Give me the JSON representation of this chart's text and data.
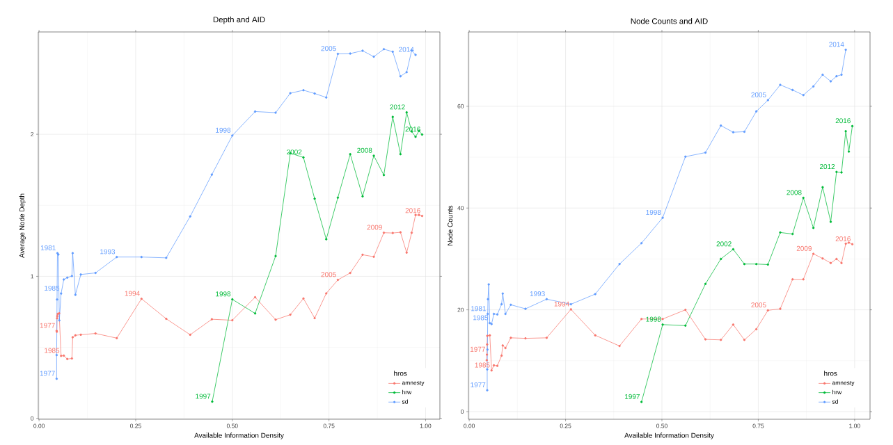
{
  "chart_data": [
    {
      "type": "line",
      "title": "Depth and AID",
      "xlabel": "Available Information Density",
      "ylabel": "Average Node Depth",
      "legend_title": "hros",
      "legend": "bottom right",
      "grid": true,
      "marker": "circle",
      "line_style": "solid",
      "xlim": [
        -0.002,
        1.037
      ],
      "ylim": [
        -0.006,
        2.72
      ],
      "xticks": [
        {
          "value": 0,
          "label": "0.00"
        },
        {
          "value": 0.25,
          "label": "0.25"
        },
        {
          "value": 0.5,
          "label": "0.50"
        },
        {
          "value": 0.75,
          "label": "0.75"
        },
        {
          "value": 1,
          "label": "1.00"
        }
      ],
      "yticks": [
        0,
        1,
        2
      ],
      "series": [
        {
          "name": "amnesty",
          "color": "#f8766d",
          "x": [
            0.0455,
            0.046,
            0.0465,
            0.047,
            0.048,
            0.052,
            0.057,
            0.064,
            0.073,
            0.085,
            0.087,
            0.094,
            0.108,
            0.146,
            0.201,
            0.265,
            0.329,
            0.391,
            0.447,
            0.5,
            0.559,
            0.612,
            0.65,
            0.684,
            0.713,
            0.743,
            0.773,
            0.805,
            0.837,
            0.866,
            0.892,
            0.915,
            0.935,
            0.951,
            0.964,
            0.974,
            0.983,
            0.991
          ],
          "values": [
            0.616,
            0.61,
            0.705,
            0.72,
            0.735,
            0.74,
            0.44,
            0.442,
            0.418,
            0.422,
            0.571,
            0.585,
            0.589,
            0.598,
            0.565,
            0.842,
            0.701,
            0.589,
            0.698,
            0.691,
            0.853,
            0.695,
            0.73,
            0.844,
            0.706,
            0.88,
            0.975,
            1.024,
            1.152,
            1.138,
            1.307,
            1.305,
            1.31,
            1.167,
            1.307,
            1.432,
            1.432,
            1.425
          ]
        },
        {
          "name": "hrw",
          "color": "#00ba38",
          "x": [
            0.448,
            0.5,
            0.559,
            0.612,
            0.65,
            0.684,
            0.713,
            0.743,
            0.773,
            0.805,
            0.837,
            0.866,
            0.892,
            0.915,
            0.935,
            0.951,
            0.964,
            0.974,
            0.983,
            0.991
          ],
          "values": [
            0.118,
            0.838,
            0.739,
            1.143,
            1.867,
            1.837,
            1.546,
            1.261,
            1.554,
            1.86,
            1.563,
            1.849,
            1.713,
            2.122,
            1.86,
            2.154,
            2.02,
            1.982,
            2.024,
            1.998
          ]
        },
        {
          "name": "sd",
          "color": "#619cff",
          "x": [
            0.0455,
            0.0455,
            0.0465,
            0.0475,
            0.05,
            0.0525,
            0.057,
            0.064,
            0.073,
            0.085,
            0.087,
            0.094,
            0.108,
            0.146,
            0.201,
            0.265,
            0.329,
            0.391,
            0.447,
            0.5,
            0.559,
            0.612,
            0.65,
            0.684,
            0.713,
            0.743,
            0.773,
            0.805,
            0.837,
            0.866,
            0.892,
            0.915,
            0.935,
            0.951,
            0.964,
            0.974
          ],
          "values": [
            0.279,
            0.446,
            0.837,
            1.163,
            1.154,
            0.69,
            0.879,
            0.978,
            0.991,
            1.002,
            1.163,
            0.87,
            1.013,
            1.024,
            1.136,
            1.136,
            1.13,
            1.422,
            1.716,
            1.991,
            2.16,
            2.152,
            2.289,
            2.31,
            2.287,
            2.259,
            2.566,
            2.568,
            2.588,
            2.546,
            2.599,
            2.581,
            2.408,
            2.437,
            2.59,
            2.559
          ]
        }
      ],
      "annotations": [
        {
          "text": "1977",
          "x": 0.0455,
          "y": 0.616
        },
        {
          "text": "1985",
          "x": 0.057,
          "y": 0.44
        },
        {
          "text": "1994",
          "x": 0.265,
          "y": 0.842
        },
        {
          "text": "2005",
          "x": 0.773,
          "y": 0.975
        },
        {
          "text": "2009",
          "x": 0.892,
          "y": 1.307
        },
        {
          "text": "2016",
          "x": 0.991,
          "y": 1.425
        },
        {
          "text": "1997",
          "x": 0.448,
          "y": 0.118
        },
        {
          "text": "1998",
          "x": 0.5,
          "y": 0.838
        },
        {
          "text": "2002",
          "x": 0.684,
          "y": 1.837
        },
        {
          "text": "2008",
          "x": 0.866,
          "y": 1.849
        },
        {
          "text": "2012",
          "x": 0.951,
          "y": 2.154
        },
        {
          "text": "2016",
          "x": 0.991,
          "y": 1.998
        },
        {
          "text": "1977",
          "x": 0.0455,
          "y": 0.279
        },
        {
          "text": "1981",
          "x": 0.0475,
          "y": 1.163
        },
        {
          "text": "1985",
          "x": 0.057,
          "y": 0.879
        },
        {
          "text": "1993",
          "x": 0.201,
          "y": 1.136
        },
        {
          "text": "1998",
          "x": 0.5,
          "y": 1.991
        },
        {
          "text": "2005",
          "x": 0.773,
          "y": 2.566
        },
        {
          "text": "2014",
          "x": 0.974,
          "y": 2.559
        }
      ]
    },
    {
      "type": "line",
      "title": "Node Counts and AID",
      "xlabel": "Available Information Density",
      "ylabel": "Node Counts",
      "legend_title": "hros",
      "legend": "bottom right",
      "grid": true,
      "marker": "circle",
      "line_style": "solid",
      "xlim": [
        -0.002,
        1.04
      ],
      "ylim": [
        -1.5,
        74.6
      ],
      "xticks": [
        {
          "value": 0,
          "label": "0.00"
        },
        {
          "value": 0.25,
          "label": "0.25"
        },
        {
          "value": 0.5,
          "label": "0.50"
        },
        {
          "value": 0.75,
          "label": "0.75"
        },
        {
          "value": 1,
          "label": "1.00"
        }
      ],
      "yticks": [
        0,
        20,
        40,
        60
      ],
      "series": [
        {
          "name": "amnesty",
          "color": "#f8766d",
          "x": [
            0.0455,
            0.046,
            0.0465,
            0.047,
            0.0535,
            0.058,
            0.064,
            0.073,
            0.084,
            0.087,
            0.094,
            0.108,
            0.146,
            0.201,
            0.264,
            0.327,
            0.39,
            0.447,
            0.502,
            0.561,
            0.613,
            0.653,
            0.685,
            0.714,
            0.745,
            0.775,
            0.807,
            0.839,
            0.867,
            0.893,
            0.917,
            0.938,
            0.953,
            0.966,
            0.977,
            0.985,
            0.994
          ],
          "values": [
            10.1,
            11.2,
            13.2,
            14.9,
            15.0,
            8.1,
            9.1,
            9.0,
            11.0,
            13.0,
            12.5,
            14.5,
            14.4,
            14.5,
            20.1,
            15.0,
            12.9,
            18.2,
            18.2,
            20.0,
            14.2,
            14.1,
            17.1,
            14.1,
            16.2,
            19.9,
            20.2,
            26.0,
            26.0,
            31.0,
            30.1,
            29.2,
            30.0,
            29.2,
            33.0,
            33.2,
            32.9
          ]
        },
        {
          "name": "hrw",
          "color": "#00ba38",
          "x": [
            0.447,
            0.502,
            0.561,
            0.613,
            0.653,
            0.685,
            0.714,
            0.745,
            0.775,
            0.807,
            0.839,
            0.867,
            0.893,
            0.917,
            0.938,
            0.953,
            0.966,
            0.977,
            0.985,
            0.994
          ],
          "values": [
            1.9,
            17.1,
            16.9,
            25.1,
            30.0,
            31.9,
            29.0,
            29.0,
            28.9,
            35.2,
            34.9,
            42.0,
            36.1,
            44.1,
            37.3,
            47.1,
            47.0,
            55.1,
            51.1,
            56.1
          ]
        },
        {
          "name": "sd",
          "color": "#619cff",
          "x": [
            0.0467,
            0.0467,
            0.0473,
            0.048,
            0.0487,
            0.0507,
            0.0533,
            0.058,
            0.064,
            0.073,
            0.084,
            0.087,
            0.094,
            0.108,
            0.146,
            0.201,
            0.264,
            0.327,
            0.39,
            0.447,
            0.502,
            0.561,
            0.613,
            0.653,
            0.685,
            0.714,
            0.745,
            0.775,
            0.807,
            0.839,
            0.867,
            0.893,
            0.917,
            0.938,
            0.953,
            0.966,
            0.977
          ],
          "values": [
            4.2,
            8.3,
            12.2,
            19.2,
            22.1,
            25.0,
            17.4,
            17.2,
            19.2,
            19.1,
            21.1,
            23.2,
            19.2,
            21.0,
            20.2,
            22.1,
            21.1,
            23.1,
            29.0,
            33.1,
            38.1,
            50.1,
            50.9,
            56.2,
            54.9,
            55.0,
            59.0,
            61.2,
            64.2,
            63.2,
            62.2,
            63.9,
            66.2,
            64.9,
            65.9,
            66.2,
            71.1
          ]
        }
      ],
      "annotations": [
        {
          "text": "1977",
          "x": 0.046,
          "y": 11.2
        },
        {
          "text": "1985",
          "x": 0.058,
          "y": 8.1
        },
        {
          "text": "1994",
          "x": 0.264,
          "y": 20.1
        },
        {
          "text": "2005",
          "x": 0.775,
          "y": 19.9
        },
        {
          "text": "2009",
          "x": 0.893,
          "y": 31.0
        },
        {
          "text": "2016",
          "x": 0.994,
          "y": 32.9
        },
        {
          "text": "1997",
          "x": 0.447,
          "y": 1.9
        },
        {
          "text": "1998",
          "x": 0.502,
          "y": 17.1
        },
        {
          "text": "2002",
          "x": 0.685,
          "y": 31.9
        },
        {
          "text": "2008",
          "x": 0.867,
          "y": 42.0
        },
        {
          "text": "2012",
          "x": 0.953,
          "y": 47.1
        },
        {
          "text": "2016",
          "x": 0.994,
          "y": 56.1
        },
        {
          "text": "1977",
          "x": 0.0467,
          "y": 4.2
        },
        {
          "text": "1981",
          "x": 0.048,
          "y": 19.2
        },
        {
          "text": "1985",
          "x": 0.0533,
          "y": 17.4
        },
        {
          "text": "1993",
          "x": 0.201,
          "y": 22.1
        },
        {
          "text": "1998",
          "x": 0.502,
          "y": 38.1
        },
        {
          "text": "2005",
          "x": 0.775,
          "y": 61.2
        },
        {
          "text": "2014",
          "x": 0.977,
          "y": 71.1
        }
      ]
    }
  ]
}
